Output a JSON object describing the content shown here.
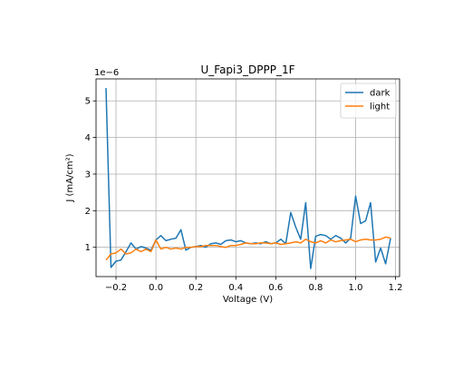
{
  "chart_data": {
    "type": "line",
    "title": "U_Fapi3_DPPP_1F",
    "xlabel": "Voltage (V)",
    "ylabel": "J (mA/cm²)",
    "y_offset_label": "1e−6",
    "xlim": [
      -0.3,
      1.22
    ],
    "ylim": [
      0.2,
      5.6
    ],
    "x_ticks": [
      -0.2,
      0.0,
      0.2,
      0.4,
      0.6,
      0.8,
      1.0,
      1.2
    ],
    "x_tick_labels": [
      "−0.2",
      "0.0",
      "0.2",
      "0.4",
      "0.6",
      "0.8",
      "1.0",
      "1.2"
    ],
    "y_ticks": [
      1,
      2,
      3,
      4,
      5
    ],
    "y_tick_labels": [
      "1",
      "2",
      "3",
      "4",
      "5"
    ],
    "grid": true,
    "legend_position": "top-right",
    "x": [
      -0.25,
      -0.225,
      -0.2,
      -0.175,
      -0.15,
      -0.125,
      -0.1,
      -0.075,
      -0.05,
      -0.025,
      0.0,
      0.025,
      0.05,
      0.075,
      0.1,
      0.125,
      0.15,
      0.175,
      0.2,
      0.225,
      0.25,
      0.275,
      0.3,
      0.325,
      0.35,
      0.375,
      0.4,
      0.425,
      0.45,
      0.475,
      0.5,
      0.525,
      0.55,
      0.575,
      0.6,
      0.625,
      0.65,
      0.675,
      0.7,
      0.725,
      0.75,
      0.775,
      0.8,
      0.825,
      0.85,
      0.875,
      0.9,
      0.925,
      0.95,
      0.975,
      1.0,
      1.025,
      1.05,
      1.075,
      1.1,
      1.125,
      1.15,
      1.175
    ],
    "series": [
      {
        "name": "dark",
        "color": "#1f77b4",
        "values": [
          5.35,
          0.45,
          0.62,
          0.65,
          0.88,
          1.12,
          0.95,
          1.02,
          0.98,
          0.92,
          1.2,
          1.32,
          1.18,
          1.22,
          1.25,
          1.48,
          0.92,
          1.0,
          1.02,
          1.05,
          1.0,
          1.1,
          1.12,
          1.08,
          1.18,
          1.2,
          1.15,
          1.18,
          1.12,
          1.1,
          1.12,
          1.1,
          1.15,
          1.1,
          1.12,
          1.22,
          1.1,
          1.95,
          1.55,
          1.22,
          2.22,
          0.42,
          1.3,
          1.35,
          1.32,
          1.22,
          1.32,
          1.25,
          1.12,
          1.25,
          2.4,
          1.65,
          1.72,
          2.22,
          0.6,
          0.98,
          0.55,
          1.25
        ]
      },
      {
        "name": "light",
        "color": "#ff7f0e",
        "values": [
          0.65,
          0.82,
          0.85,
          0.95,
          0.82,
          0.85,
          0.95,
          0.88,
          0.95,
          0.88,
          1.2,
          0.95,
          1.0,
          0.95,
          0.98,
          0.95,
          1.0,
          1.0,
          1.02,
          1.02,
          1.05,
          1.05,
          1.05,
          1.02,
          1.0,
          1.05,
          1.05,
          1.08,
          1.12,
          1.1,
          1.1,
          1.12,
          1.12,
          1.1,
          1.12,
          1.08,
          1.1,
          1.12,
          1.15,
          1.12,
          1.22,
          1.15,
          1.12,
          1.18,
          1.12,
          1.2,
          1.15,
          1.18,
          1.2,
          1.22,
          1.15,
          1.2,
          1.22,
          1.2,
          1.2,
          1.22,
          1.28,
          1.25
        ]
      }
    ]
  }
}
